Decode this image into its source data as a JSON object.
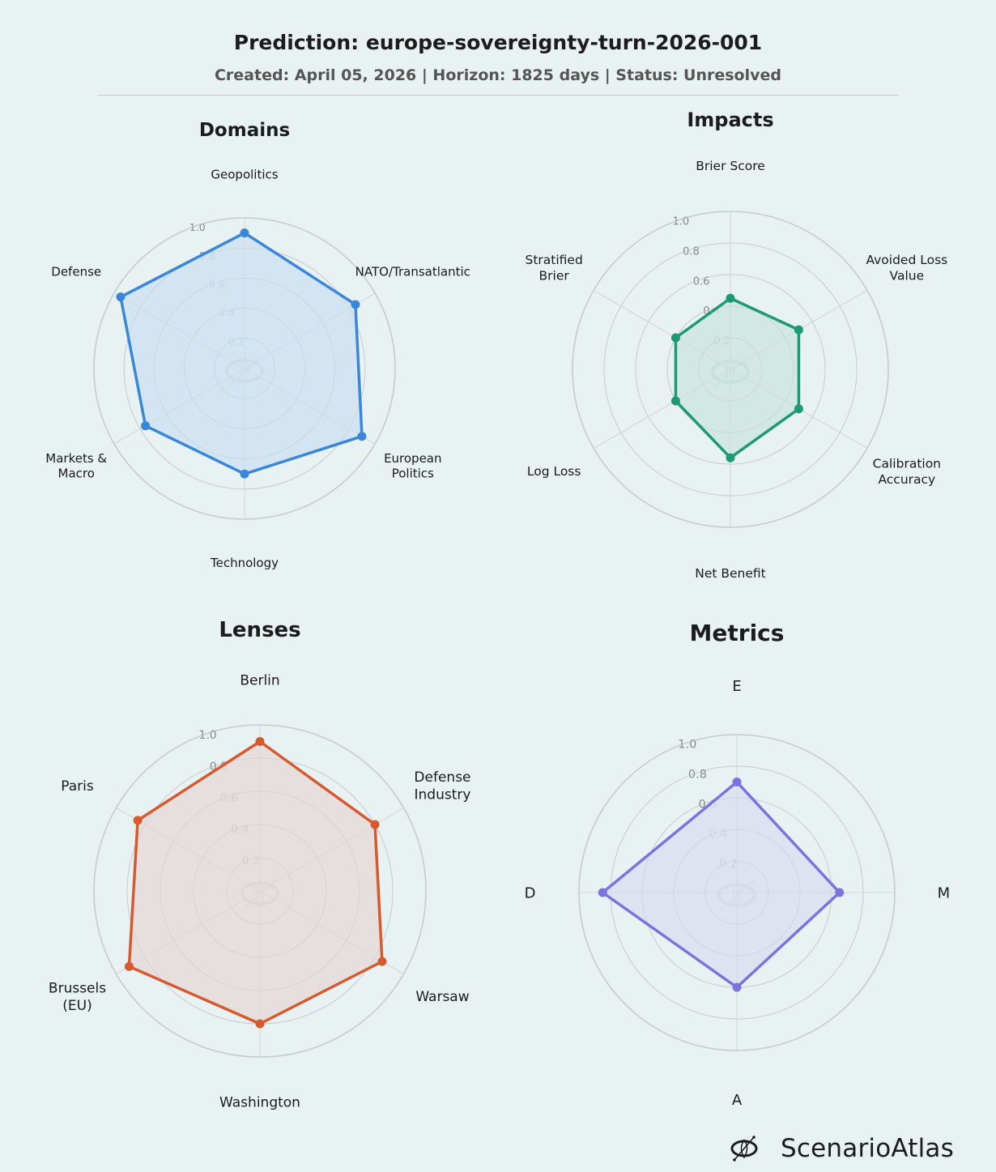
{
  "header": {
    "title": "Prediction: europe-sovereignty-turn-2026-001",
    "subtitle": "Created: April 05, 2026  |  Horizon: 1825 days  |  Status: Unresolved"
  },
  "brand": {
    "name": "ScenarioAtlas",
    "icon": "scenarioatlas-logo-icon"
  },
  "chart_data": [
    {
      "type": "radar",
      "title": "Domains",
      "categories": [
        "Geopolitics",
        "NATO/Transatlantic",
        "European\nPolitics",
        "Technology",
        "Markets &\nMacro",
        "Defense"
      ],
      "values": [
        0.9,
        0.85,
        0.9,
        0.7,
        0.76,
        0.95
      ],
      "rlim": [
        0,
        1.0
      ],
      "rticks": [
        "0.2",
        "0.4",
        "0.6",
        "0.8",
        "1.0"
      ],
      "color": "#3a87d9",
      "fill": "#cfe3f1"
    },
    {
      "type": "radar",
      "title": "Impacts",
      "categories": [
        "Brier Score",
        "Avoided Loss\nValue",
        "Calibration\nAccuracy",
        "Net Benefit",
        "Log Loss",
        "Stratified\nBrier"
      ],
      "values": [
        0.45,
        0.5,
        0.5,
        0.56,
        0.4,
        0.4
      ],
      "rlim": [
        0,
        1.0
      ],
      "rticks": [
        "0.2",
        "0.4",
        "0.6",
        "0.8",
        "1.0"
      ],
      "color": "#1d9a72",
      "fill": "#cde6e1"
    },
    {
      "type": "radar",
      "title": "Lenses",
      "categories": [
        "Berlin",
        "Defense\nIndustry",
        "Warsaw",
        "Washington",
        "Brussels\n(EU)",
        "Paris"
      ],
      "values": [
        0.9,
        0.8,
        0.85,
        0.8,
        0.91,
        0.85
      ],
      "rlim": [
        0,
        1.0
      ],
      "rticks": [
        "0.2",
        "0.4",
        "0.6",
        "0.8",
        "1.0"
      ],
      "color": "#d65a30",
      "fill": "#e5dcd8"
    },
    {
      "type": "radar",
      "title": "Metrics",
      "categories": [
        "E",
        "M",
        "A",
        "D"
      ],
      "values": [
        0.7,
        0.65,
        0.6,
        0.85
      ],
      "rlim": [
        0,
        1.0
      ],
      "rticks": [
        "0.2",
        "0.4",
        "0.6",
        "0.8",
        "1.0"
      ],
      "color": "#7b74dc",
      "fill": "#dbe0f0"
    }
  ]
}
